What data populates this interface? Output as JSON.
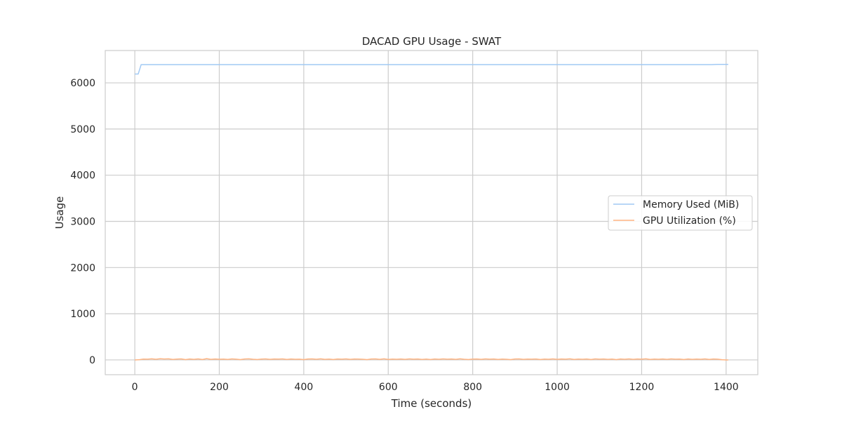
{
  "chart_data": {
    "type": "line",
    "title": "DACAD GPU Usage - SWAT",
    "xlabel": "Time (seconds)",
    "ylabel": "Usage",
    "xlim": [
      -70,
      1475
    ],
    "ylim": [
      -320,
      6700
    ],
    "x_ticks": [
      0,
      200,
      400,
      600,
      800,
      1000,
      1200,
      1400
    ],
    "y_ticks": [
      0,
      1000,
      2000,
      3000,
      4000,
      5000,
      6000
    ],
    "grid": true,
    "legend_position": "center-right",
    "series": [
      {
        "name": "Memory Used (MiB)",
        "color": "#a1c9f4",
        "points": [
          [
            0,
            6190
          ],
          [
            8,
            6190
          ],
          [
            15,
            6395
          ],
          [
            1365,
            6395
          ],
          [
            1380,
            6400
          ],
          [
            1405,
            6400
          ]
        ]
      },
      {
        "name": "GPU Utilization (%)",
        "color": "#ffb482",
        "points": [
          [
            0,
            0
          ],
          [
            10,
            4
          ],
          [
            20,
            18
          ],
          [
            30,
            16
          ],
          [
            40,
            24
          ],
          [
            50,
            14
          ],
          [
            60,
            26
          ],
          [
            70,
            20
          ],
          [
            80,
            24
          ],
          [
            90,
            10
          ],
          [
            100,
            18
          ],
          [
            110,
            22
          ],
          [
            120,
            6
          ],
          [
            130,
            20
          ],
          [
            140,
            12
          ],
          [
            150,
            22
          ],
          [
            160,
            8
          ],
          [
            170,
            28
          ],
          [
            180,
            12
          ],
          [
            190,
            20
          ],
          [
            200,
            14
          ],
          [
            210,
            18
          ],
          [
            220,
            10
          ],
          [
            230,
            22
          ],
          [
            240,
            16
          ],
          [
            250,
            6
          ],
          [
            260,
            20
          ],
          [
            270,
            24
          ],
          [
            280,
            14
          ],
          [
            290,
            8
          ],
          [
            300,
            18
          ],
          [
            310,
            22
          ],
          [
            320,
            12
          ],
          [
            330,
            20
          ],
          [
            340,
            18
          ],
          [
            350,
            22
          ],
          [
            360,
            10
          ],
          [
            370,
            20
          ],
          [
            380,
            14
          ],
          [
            390,
            16
          ],
          [
            400,
            6
          ],
          [
            410,
            20
          ],
          [
            420,
            22
          ],
          [
            430,
            14
          ],
          [
            440,
            24
          ],
          [
            450,
            12
          ],
          [
            460,
            18
          ],
          [
            470,
            8
          ],
          [
            480,
            20
          ],
          [
            490,
            16
          ],
          [
            500,
            22
          ],
          [
            510,
            12
          ],
          [
            520,
            20
          ],
          [
            530,
            18
          ],
          [
            540,
            14
          ],
          [
            550,
            6
          ],
          [
            560,
            20
          ],
          [
            570,
            22
          ],
          [
            580,
            12
          ],
          [
            590,
            24
          ],
          [
            600,
            10
          ],
          [
            610,
            18
          ],
          [
            620,
            14
          ],
          [
            630,
            20
          ],
          [
            640,
            12
          ],
          [
            650,
            22
          ],
          [
            660,
            16
          ],
          [
            670,
            20
          ],
          [
            680,
            10
          ],
          [
            690,
            18
          ],
          [
            700,
            8
          ],
          [
            710,
            20
          ],
          [
            720,
            14
          ],
          [
            730,
            22
          ],
          [
            740,
            16
          ],
          [
            750,
            20
          ],
          [
            760,
            12
          ],
          [
            770,
            24
          ],
          [
            780,
            14
          ],
          [
            790,
            8
          ],
          [
            800,
            18
          ],
          [
            810,
            20
          ],
          [
            820,
            12
          ],
          [
            830,
            22
          ],
          [
            840,
            16
          ],
          [
            850,
            20
          ],
          [
            860,
            10
          ],
          [
            870,
            18
          ],
          [
            880,
            14
          ],
          [
            890,
            6
          ],
          [
            900,
            20
          ],
          [
            910,
            22
          ],
          [
            920,
            12
          ],
          [
            930,
            18
          ],
          [
            940,
            16
          ],
          [
            950,
            20
          ],
          [
            960,
            8
          ],
          [
            970,
            18
          ],
          [
            980,
            14
          ],
          [
            990,
            22
          ],
          [
            1000,
            12
          ],
          [
            1010,
            20
          ],
          [
            1020,
            16
          ],
          [
            1030,
            24
          ],
          [
            1040,
            10
          ],
          [
            1050,
            18
          ],
          [
            1060,
            14
          ],
          [
            1070,
            20
          ],
          [
            1080,
            8
          ],
          [
            1090,
            22
          ],
          [
            1100,
            16
          ],
          [
            1110,
            20
          ],
          [
            1120,
            12
          ],
          [
            1130,
            18
          ],
          [
            1140,
            6
          ],
          [
            1150,
            20
          ],
          [
            1160,
            14
          ],
          [
            1170,
            22
          ],
          [
            1180,
            12
          ],
          [
            1190,
            20
          ],
          [
            1200,
            16
          ],
          [
            1210,
            24
          ],
          [
            1220,
            10
          ],
          [
            1230,
            18
          ],
          [
            1240,
            14
          ],
          [
            1250,
            20
          ],
          [
            1260,
            12
          ],
          [
            1270,
            22
          ],
          [
            1280,
            16
          ],
          [
            1290,
            18
          ],
          [
            1300,
            8
          ],
          [
            1310,
            20
          ],
          [
            1320,
            12
          ],
          [
            1330,
            18
          ],
          [
            1340,
            14
          ],
          [
            1350,
            22
          ],
          [
            1360,
            10
          ],
          [
            1370,
            20
          ],
          [
            1380,
            16
          ],
          [
            1390,
            4
          ],
          [
            1400,
            0
          ],
          [
            1405,
            0
          ]
        ]
      }
    ]
  }
}
